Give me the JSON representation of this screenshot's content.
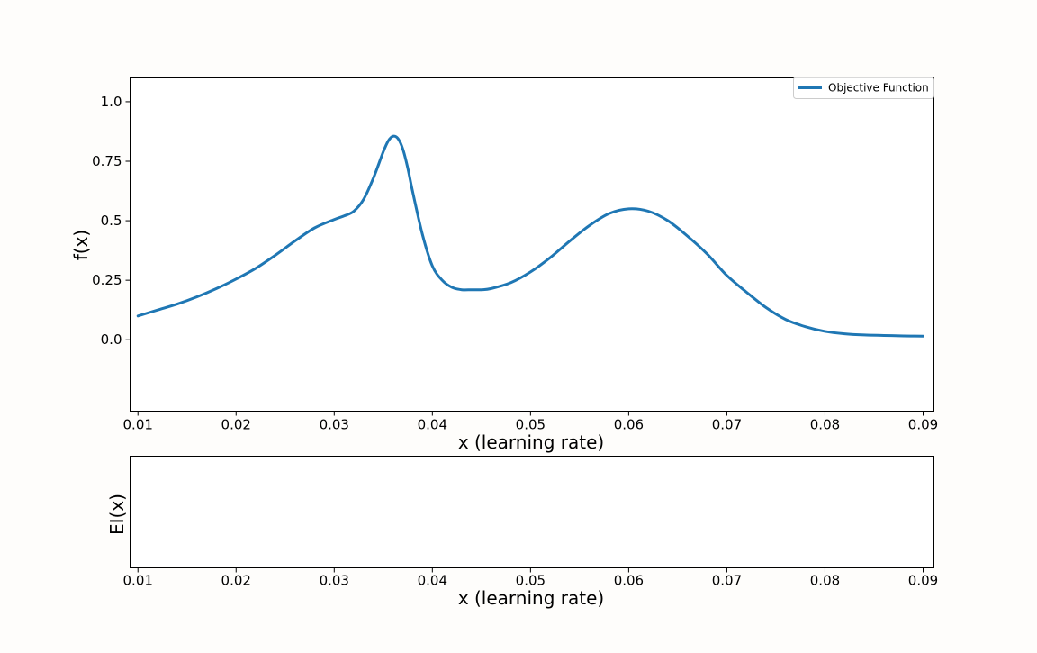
{
  "colors": {
    "background": "#fefdfb",
    "series": "#1f77b4",
    "axes": "#000000",
    "legend_border": "#cccccc"
  },
  "chart_data": [
    {
      "type": "line",
      "title": "",
      "xlabel": "x (learning rate)",
      "ylabel": "f(x)",
      "xlim": [
        0.0092,
        0.0911
      ],
      "ylim": [
        -0.3,
        1.1
      ],
      "x_ticks": [
        0.01,
        0.02,
        0.03,
        0.04,
        0.05,
        0.06,
        0.07,
        0.08,
        0.09
      ],
      "x_tick_labels": [
        "0.01",
        "0.02",
        "0.03",
        "0.04",
        "0.05",
        "0.06",
        "0.07",
        "0.08",
        "0.09"
      ],
      "y_ticks": [
        0.0,
        0.25,
        0.5,
        0.75,
        1.0
      ],
      "y_tick_labels": [
        "0.0",
        "0.25",
        "0.5",
        "0.75",
        "1.0"
      ],
      "grid": false,
      "legend": {
        "position": "top-right",
        "entries": [
          "Objective Function"
        ]
      },
      "series": [
        {
          "name": "Objective Function",
          "color": "#1f77b4",
          "x": [
            0.01,
            0.012,
            0.014,
            0.016,
            0.018,
            0.02,
            0.022,
            0.024,
            0.026,
            0.028,
            0.03,
            0.031,
            0.032,
            0.033,
            0.034,
            0.035,
            0.0355,
            0.036,
            0.0365,
            0.037,
            0.0375,
            0.038,
            0.039,
            0.04,
            0.041,
            0.042,
            0.043,
            0.044,
            0.045,
            0.046,
            0.048,
            0.05,
            0.052,
            0.054,
            0.056,
            0.058,
            0.06,
            0.062,
            0.064,
            0.066,
            0.068,
            0.07,
            0.072,
            0.074,
            0.076,
            0.078,
            0.08,
            0.082,
            0.084,
            0.086,
            0.088,
            0.09
          ],
          "y": [
            0.1,
            0.125,
            0.15,
            0.18,
            0.215,
            0.255,
            0.3,
            0.355,
            0.415,
            0.47,
            0.505,
            0.52,
            0.54,
            0.59,
            0.68,
            0.79,
            0.835,
            0.855,
            0.845,
            0.8,
            0.72,
            0.62,
            0.44,
            0.31,
            0.25,
            0.22,
            0.21,
            0.21,
            0.21,
            0.215,
            0.24,
            0.285,
            0.345,
            0.415,
            0.48,
            0.53,
            0.55,
            0.54,
            0.5,
            0.435,
            0.36,
            0.27,
            0.2,
            0.135,
            0.085,
            0.055,
            0.035,
            0.025,
            0.02,
            0.018,
            0.016,
            0.015
          ]
        }
      ]
    },
    {
      "type": "line",
      "title": "",
      "xlabel": "x (learning rate)",
      "ylabel": "EI(x)",
      "xlim": [
        0.0092,
        0.0911
      ],
      "x_ticks": [
        0.01,
        0.02,
        0.03,
        0.04,
        0.05,
        0.06,
        0.07,
        0.08,
        0.09
      ],
      "x_tick_labels": [
        "0.01",
        "0.02",
        "0.03",
        "0.04",
        "0.05",
        "0.06",
        "0.07",
        "0.08",
        "0.09"
      ],
      "y_tick_labels": [],
      "grid": false,
      "series": []
    }
  ]
}
